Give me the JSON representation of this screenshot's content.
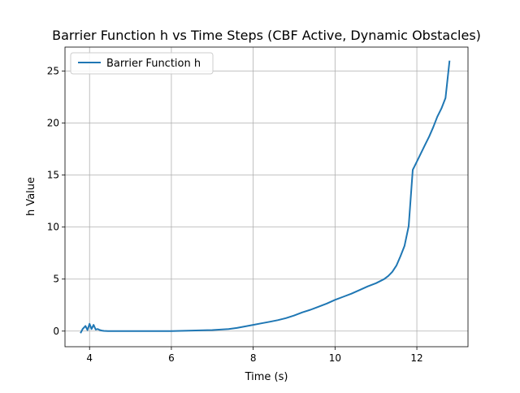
{
  "chart_data": {
    "type": "line",
    "title": "Barrier Function h vs Time Steps (CBF Active, Dynamic Obstacles)",
    "xlabel": "Time (s)",
    "ylabel": "h Value",
    "xlim": [
      3.4,
      13.25
    ],
    "ylim": [
      -1.5,
      27.3
    ],
    "xticks": [
      4,
      6,
      8,
      10,
      12
    ],
    "yticks": [
      0,
      5,
      10,
      15,
      20,
      25
    ],
    "grid": true,
    "legend": "upper left",
    "colors": {
      "series": "#1f77b4"
    },
    "series": [
      {
        "name": "Barrier Function h",
        "x": [
          3.78,
          3.83,
          3.9,
          3.95,
          4.0,
          4.05,
          4.1,
          4.15,
          4.2,
          4.25,
          4.3,
          4.35,
          4.45,
          4.6,
          4.8,
          5.0,
          5.5,
          6.0,
          6.5,
          7.0,
          7.2,
          7.4,
          7.6,
          7.8,
          8.0,
          8.2,
          8.4,
          8.6,
          8.8,
          9.0,
          9.2,
          9.4,
          9.6,
          9.8,
          10.0,
          10.2,
          10.4,
          10.6,
          10.8,
          11.0,
          11.1,
          11.2,
          11.3,
          11.4,
          11.5,
          11.6,
          11.7,
          11.8,
          11.9,
          12.0,
          12.1,
          12.2,
          12.3,
          12.4,
          12.5,
          12.6,
          12.7,
          12.8
        ],
        "y": [
          -0.2,
          0.2,
          0.5,
          0.1,
          0.7,
          0.2,
          0.6,
          0.15,
          0.2,
          0.1,
          0.05,
          0.02,
          0.0,
          0.0,
          0.0,
          0.0,
          0.0,
          0.0,
          0.05,
          0.1,
          0.15,
          0.2,
          0.3,
          0.45,
          0.6,
          0.75,
          0.9,
          1.05,
          1.25,
          1.5,
          1.8,
          2.05,
          2.35,
          2.65,
          3.0,
          3.3,
          3.6,
          3.95,
          4.3,
          4.6,
          4.8,
          5.0,
          5.3,
          5.7,
          6.3,
          7.2,
          8.2,
          10.1,
          15.5,
          16.3,
          17.1,
          17.9,
          18.7,
          19.6,
          20.6,
          21.4,
          22.4,
          26.0
        ]
      }
    ]
  }
}
